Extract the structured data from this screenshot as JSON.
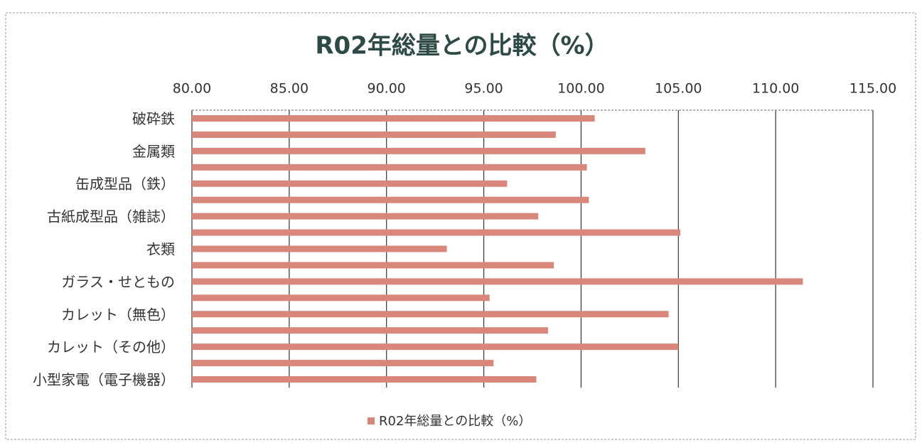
{
  "chart_data": {
    "type": "bar",
    "orientation": "horizontal",
    "title": "R02年総量との比較（%）",
    "categories": [
      "破砕鉄",
      null,
      "金属類",
      null,
      "缶成型品（鉄）",
      null,
      "古紙成型品（雑誌）",
      null,
      "衣類",
      null,
      "ガラス・せともの",
      null,
      "カレット（無色）",
      null,
      "カレット（その他）",
      null,
      "小型家電（電子機器）"
    ],
    "series": [
      {
        "name": "R02年総量との比較（%）",
        "color": "#d9877b",
        "values": [
          100.7,
          98.7,
          103.3,
          100.3,
          96.2,
          100.4,
          97.8,
          105.1,
          93.1,
          98.6,
          111.4,
          95.3,
          104.5,
          98.3,
          105.0,
          95.5,
          97.7
        ]
      }
    ],
    "xlim": [
      80,
      115
    ],
    "xticks": [
      {
        "value": 80,
        "label": "80.00"
      },
      {
        "value": 85,
        "label": "85.00"
      },
      {
        "value": 90,
        "label": "90.00"
      },
      {
        "value": 95,
        "label": "95.00"
      },
      {
        "value": 100,
        "label": "100.00"
      },
      {
        "value": 105,
        "label": "105.00"
      },
      {
        "value": 110,
        "label": "110.00"
      },
      {
        "value": 115,
        "label": "115.00"
      }
    ],
    "grid": true,
    "legend": "bottom"
  }
}
